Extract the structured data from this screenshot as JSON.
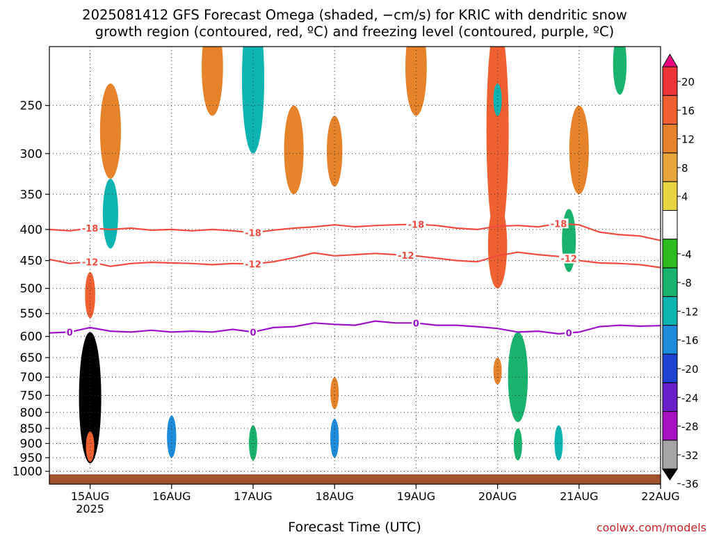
{
  "title": {
    "line1": "2025081412 GFS Forecast Omega (shaded, −cm/s) for KRIC with dendritic snow",
    "line2": "growth region (contoured, red, ºC) and freezing level (contoured, purple, ºC)"
  },
  "credit": "coolwx.com/models",
  "chart_data": {
    "type": "heatmap",
    "xlabel": "Forecast Time (UTC)",
    "ylabel": "",
    "x_range": [
      "2025-08-14T12",
      "2025-08-22T00"
    ],
    "y_scale": "log",
    "y_inverted": true,
    "y_range": [
      1050,
      200
    ],
    "x_ticks": [
      "15AUG",
      "16AUG",
      "17AUG",
      "18AUG",
      "19AUG",
      "20AUG",
      "21AUG",
      "22AUG"
    ],
    "x_tick_year": "2025",
    "y_ticks": [
      250,
      300,
      350,
      400,
      450,
      500,
      550,
      600,
      650,
      700,
      750,
      800,
      850,
      900,
      950,
      1000
    ],
    "grid": true,
    "colorbar": {
      "levels": [
        "20",
        "16",
        "12",
        "8",
        "4",
        "-4",
        "-8",
        "-12",
        "-16",
        "-20",
        "-24",
        "-28",
        "-32",
        "-36"
      ],
      "colors": [
        "#f0007d",
        "#ee3437",
        "#f06030",
        "#e6822a",
        "#e6a63c",
        "#e6d540",
        "#ffffff",
        "#2cbc1d",
        "#1ab36e",
        "#0db4b1",
        "#1d8cdc",
        "#1e42d2",
        "#6a1eca",
        "#a811c2",
        "#a5a5a5",
        "#000000"
      ]
    },
    "contours": [
      {
        "name": "dendritic snow growth region",
        "color": "#f04b41",
        "levels": [
          {
            "value": -18,
            "label": "-18",
            "label_times": [
              "2025-08-15T00",
              "2025-08-17T00",
              "2025-08-19T00",
              "2025-08-20T18"
            ],
            "points": [
              [
                "2025-08-14T12",
                400
              ],
              [
                "2025-08-14T18",
                402
              ],
              [
                "2025-08-15T00",
                398
              ],
              [
                "2025-08-15T06",
                400
              ],
              [
                "2025-08-15T12",
                398
              ],
              [
                "2025-08-15T18",
                401
              ],
              [
                "2025-08-16T00",
                400
              ],
              [
                "2025-08-16T06",
                402
              ],
              [
                "2025-08-16T12",
                400
              ],
              [
                "2025-08-16T18",
                402
              ],
              [
                "2025-08-17T00",
                405
              ],
              [
                "2025-08-17T06",
                401
              ],
              [
                "2025-08-17T12",
                398
              ],
              [
                "2025-08-17T18",
                396
              ],
              [
                "2025-08-18T00",
                393
              ],
              [
                "2025-08-18T06",
                396
              ],
              [
                "2025-08-18T12",
                394
              ],
              [
                "2025-08-18T18",
                393
              ],
              [
                "2025-08-19T00",
                392
              ],
              [
                "2025-08-19T06",
                394
              ],
              [
                "2025-08-19T12",
                398
              ],
              [
                "2025-08-19T18",
                400
              ],
              [
                "2025-08-20T00",
                395
              ],
              [
                "2025-08-20T06",
                394
              ],
              [
                "2025-08-20T12",
                396
              ],
              [
                "2025-08-20T18",
                391
              ],
              [
                "2025-08-21T00",
                393
              ],
              [
                "2025-08-21T06",
                404
              ],
              [
                "2025-08-21T12",
                408
              ],
              [
                "2025-08-21T18",
                410
              ],
              [
                "2025-08-22T00",
                417
              ]
            ]
          },
          {
            "value": -12,
            "label": "-12",
            "label_times": [
              "2025-08-15T00",
              "2025-08-17T00",
              "2025-08-18T21",
              "2025-08-20T21"
            ],
            "points": [
              [
                "2025-08-14T12",
                448
              ],
              [
                "2025-08-14T18",
                455
              ],
              [
                "2025-08-15T00",
                452
              ],
              [
                "2025-08-15T06",
                460
              ],
              [
                "2025-08-15T12",
                455
              ],
              [
                "2025-08-15T18",
                453
              ],
              [
                "2025-08-16T00",
                454
              ],
              [
                "2025-08-16T06",
                455
              ],
              [
                "2025-08-16T12",
                457
              ],
              [
                "2025-08-16T18",
                455
              ],
              [
                "2025-08-17T00",
                456
              ],
              [
                "2025-08-17T06",
                452
              ],
              [
                "2025-08-17T12",
                445
              ],
              [
                "2025-08-17T18",
                437
              ],
              [
                "2025-08-18T00",
                442
              ],
              [
                "2025-08-18T06",
                440
              ],
              [
                "2025-08-18T12",
                438
              ],
              [
                "2025-08-18T18",
                440
              ],
              [
                "2025-08-19T00",
                442
              ],
              [
                "2025-08-19T06",
                446
              ],
              [
                "2025-08-19T12",
                450
              ],
              [
                "2025-08-19T18",
                452
              ],
              [
                "2025-08-20T00",
                442
              ],
              [
                "2025-08-20T06",
                436
              ],
              [
                "2025-08-20T12",
                440
              ],
              [
                "2025-08-20T18",
                443
              ],
              [
                "2025-08-21T00",
                450
              ],
              [
                "2025-08-21T06",
                454
              ],
              [
                "2025-08-21T12",
                455
              ],
              [
                "2025-08-21T18",
                457
              ],
              [
                "2025-08-22T00",
                462
              ]
            ]
          }
        ]
      },
      {
        "name": "freezing level",
        "color": "#9b12c8",
        "levels": [
          {
            "value": 0,
            "label": "0",
            "label_times": [
              "2025-08-14T18",
              "2025-08-17T00",
              "2025-08-19T00",
              "2025-08-20T21"
            ],
            "points": [
              [
                "2025-08-14T12",
                592
              ],
              [
                "2025-08-14T18",
                590
              ],
              [
                "2025-08-15T00",
                580
              ],
              [
                "2025-08-15T06",
                588
              ],
              [
                "2025-08-15T12",
                590
              ],
              [
                "2025-08-15T18",
                586
              ],
              [
                "2025-08-16T00",
                590
              ],
              [
                "2025-08-16T06",
                588
              ],
              [
                "2025-08-16T12",
                590
              ],
              [
                "2025-08-16T18",
                584
              ],
              [
                "2025-08-17T00",
                590
              ],
              [
                "2025-08-17T06",
                580
              ],
              [
                "2025-08-17T12",
                578
              ],
              [
                "2025-08-17T18",
                570
              ],
              [
                "2025-08-18T00",
                573
              ],
              [
                "2025-08-18T06",
                575
              ],
              [
                "2025-08-18T12",
                566
              ],
              [
                "2025-08-18T18",
                570
              ],
              [
                "2025-08-19T00",
                570
              ],
              [
                "2025-08-19T06",
                575
              ],
              [
                "2025-08-19T12",
                575
              ],
              [
                "2025-08-19T18",
                578
              ],
              [
                "2025-08-20T00",
                582
              ],
              [
                "2025-08-20T06",
                590
              ],
              [
                "2025-08-20T12",
                588
              ],
              [
                "2025-08-20T18",
                594
              ],
              [
                "2025-08-21T00",
                590
              ],
              [
                "2025-08-21T06",
                578
              ],
              [
                "2025-08-21T12",
                575
              ],
              [
                "2025-08-21T18",
                577
              ],
              [
                "2025-08-22T00",
                576
              ]
            ]
          }
        ]
      }
    ],
    "surface": {
      "name": "below ground",
      "color": "#a0522d",
      "pressure": 1012
    },
    "shaded_features": [
      {
        "time": "2025-08-15T00",
        "p_top": 590,
        "p_bottom": 970,
        "omega": -36
      },
      {
        "time": "2025-08-15T00",
        "p_top": 470,
        "p_bottom": 560,
        "omega": 12
      },
      {
        "time": "2025-08-15T00",
        "p_top": 860,
        "p_bottom": 965,
        "omega": 12
      },
      {
        "time": "2025-08-15T06",
        "p_top": 330,
        "p_bottom": 430,
        "omega": -12
      },
      {
        "time": "2025-08-15T06",
        "p_top": 230,
        "p_bottom": 330,
        "omega": 8
      },
      {
        "time": "2025-08-16T00",
        "p_top": 810,
        "p_bottom": 950,
        "omega": -16
      },
      {
        "time": "2025-08-16T12",
        "p_top": 180,
        "p_bottom": 260,
        "omega": 8
      },
      {
        "time": "2025-08-17T00",
        "p_top": 840,
        "p_bottom": 960,
        "omega": -8
      },
      {
        "time": "2025-08-17T00",
        "p_top": 170,
        "p_bottom": 300,
        "omega": -12
      },
      {
        "time": "2025-08-17T12",
        "p_top": 250,
        "p_bottom": 350,
        "omega": 8
      },
      {
        "time": "2025-08-18T00",
        "p_top": 820,
        "p_bottom": 950,
        "omega": -16
      },
      {
        "time": "2025-08-18T00",
        "p_top": 260,
        "p_bottom": 340,
        "omega": 8
      },
      {
        "time": "2025-08-18T00",
        "p_top": 700,
        "p_bottom": 790,
        "omega": 8
      },
      {
        "time": "2025-08-19T00",
        "p_top": 180,
        "p_bottom": 260,
        "omega": 8
      },
      {
        "time": "2025-08-20T00",
        "p_top": 180,
        "p_bottom": 420,
        "omega": 12
      },
      {
        "time": "2025-08-20T00",
        "p_top": 360,
        "p_bottom": 500,
        "omega": 12
      },
      {
        "time": "2025-08-20T00",
        "p_top": 650,
        "p_bottom": 720,
        "omega": 8
      },
      {
        "time": "2025-08-20T00",
        "p_top": 230,
        "p_bottom": 260,
        "omega": -12
      },
      {
        "time": "2025-08-20T06",
        "p_top": 590,
        "p_bottom": 830,
        "omega": -8
      },
      {
        "time": "2025-08-20T06",
        "p_top": 850,
        "p_bottom": 960,
        "omega": -8
      },
      {
        "time": "2025-08-20T18",
        "p_top": 840,
        "p_bottom": 960,
        "omega": -12
      },
      {
        "time": "2025-08-20T21",
        "p_top": 370,
        "p_bottom": 470,
        "omega": -8
      },
      {
        "time": "2025-08-21T00",
        "p_top": 250,
        "p_bottom": 350,
        "omega": 8
      },
      {
        "time": "2025-08-21T12",
        "p_top": 190,
        "p_bottom": 240,
        "omega": -8
      }
    ]
  }
}
